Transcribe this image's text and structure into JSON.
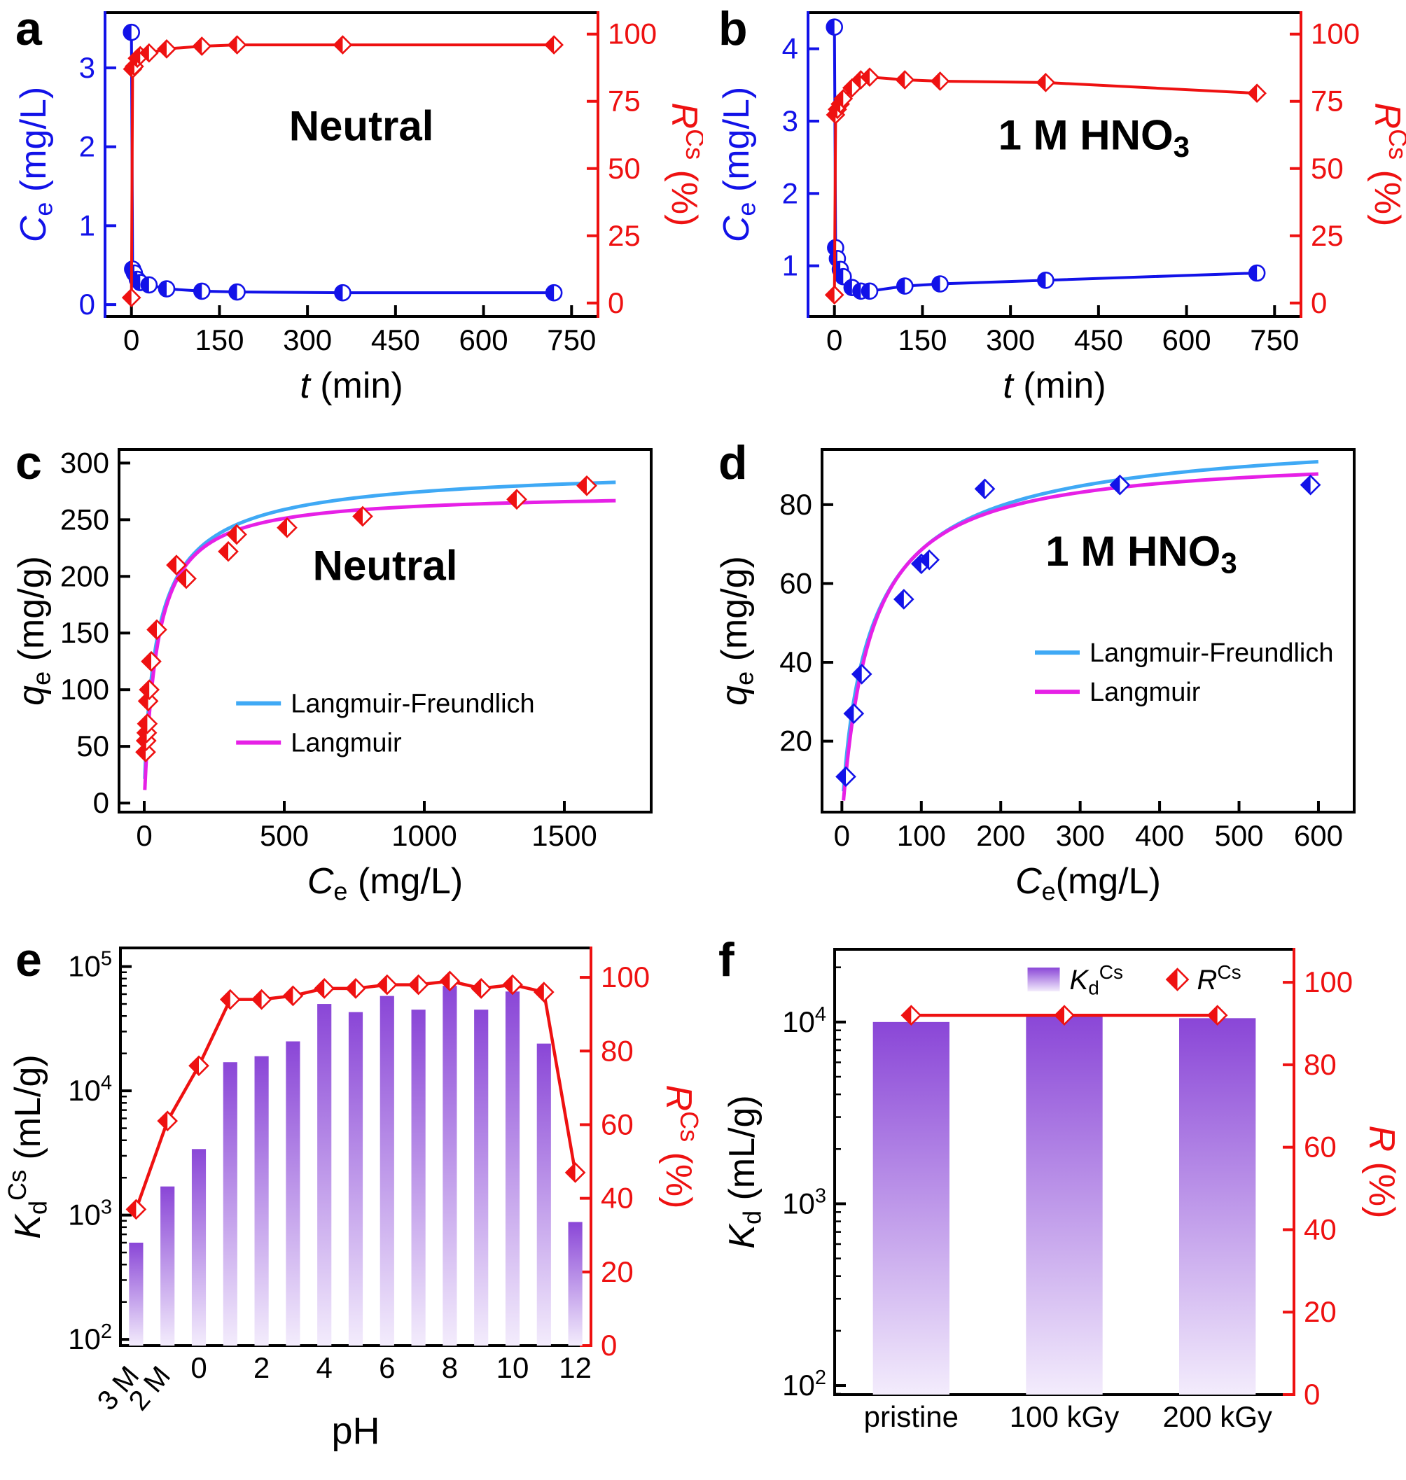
{
  "background": "#ffffff",
  "colors": {
    "blue": "#1212e8",
    "red": "#ee1111",
    "cyan": "#3fa9f5",
    "magenta": "#e620e6",
    "bar_bottom": "#f3ecfc",
    "bar_top": "#8a46d7"
  },
  "chart_data": [
    {
      "panel_label": "a",
      "type": "kinetics",
      "annotation": {
        "text": "Neutral",
        "fx": 0.52,
        "fy": 0.42
      },
      "x_axis": {
        "label": "*t* (min)",
        "min": -45,
        "max": 795,
        "ticks": [
          0,
          150,
          300,
          450,
          600,
          750
        ]
      },
      "y_left": {
        "label": "*C*_{e} (mg/L)",
        "color": "#1212e8",
        "min": -0.15,
        "max": 3.7,
        "ticks": [
          0,
          1,
          2,
          3
        ]
      },
      "y_right": {
        "label": "*R*^{Cs} (%)",
        "color": "#ee1111",
        "min": -5,
        "max": 108,
        "ticks": [
          0,
          25,
          50,
          75,
          100
        ]
      },
      "series": [
        {
          "name": "Ce",
          "axis": "left",
          "color": "#1212e8",
          "marker": "half_circle",
          "x": [
            0,
            2,
            5,
            10,
            15,
            30,
            60,
            120,
            180,
            360,
            720
          ],
          "y": [
            3.45,
            0.45,
            0.4,
            0.32,
            0.28,
            0.25,
            0.2,
            0.17,
            0.16,
            0.15,
            0.15
          ]
        },
        {
          "name": "R Cs",
          "axis": "right",
          "color": "#ee1111",
          "marker": "half_diamond",
          "x": [
            0,
            2,
            5,
            10,
            15,
            30,
            60,
            120,
            180,
            360,
            720
          ],
          "y": [
            2,
            87,
            88,
            91,
            92,
            93,
            94.5,
            95.5,
            96,
            96,
            96
          ]
        }
      ]
    },
    {
      "panel_label": "b",
      "type": "kinetics",
      "annotation": {
        "text": "1 M HNO_{3}",
        "fx": 0.58,
        "fy": 0.45
      },
      "x_axis": {
        "label": "*t* (min)",
        "min": -45,
        "max": 795,
        "ticks": [
          0,
          150,
          300,
          450,
          600,
          750
        ]
      },
      "y_left": {
        "label": "*C*_{e} (mg/L)",
        "color": "#1212e8",
        "min": 0.3,
        "max": 4.5,
        "ticks": [
          1,
          2,
          3,
          4
        ]
      },
      "y_right": {
        "label": "*R*^{Cs} (%)",
        "color": "#ee1111",
        "min": -5,
        "max": 108,
        "ticks": [
          0,
          25,
          50,
          75,
          100
        ]
      },
      "series": [
        {
          "name": "Ce",
          "axis": "left",
          "color": "#1212e8",
          "marker": "half_circle",
          "x": [
            0,
            2,
            5,
            10,
            15,
            30,
            45,
            60,
            120,
            180,
            360,
            720
          ],
          "y": [
            4.3,
            1.25,
            1.1,
            0.95,
            0.85,
            0.7,
            0.65,
            0.65,
            0.72,
            0.75,
            0.8,
            0.9
          ]
        },
        {
          "name": "R Cs",
          "axis": "right",
          "color": "#ee1111",
          "marker": "half_diamond",
          "x": [
            0,
            2,
            5,
            10,
            15,
            30,
            45,
            60,
            120,
            180,
            360,
            720
          ],
          "y": [
            3,
            70,
            72,
            74,
            76,
            80,
            83,
            84,
            83,
            82.5,
            82,
            78
          ]
        }
      ]
    },
    {
      "panel_label": "c",
      "type": "isotherm",
      "annotation": {
        "text": "Neutral",
        "fx": 0.5,
        "fy": 0.36
      },
      "x_axis": {
        "label": "*C*_{e} (mg/L)",
        "min": -90,
        "max": 1810,
        "ticks": [
          0,
          500,
          1000,
          1500
        ]
      },
      "y_axis": {
        "label": "*q*_{e} (mg/g)",
        "min": -8,
        "max": 312,
        "ticks": [
          0,
          50,
          100,
          150,
          200,
          250,
          300
        ]
      },
      "points": {
        "marker": "half_diamond",
        "color": "#ee1111",
        "x": [
          5,
          7,
          9,
          11,
          14,
          18,
          25,
          45,
          115,
          150,
          300,
          330,
          510,
          780,
          1330,
          1580
        ],
        "y": [
          45,
          55,
          62,
          70,
          90,
          100,
          125,
          153,
          210,
          198,
          222,
          237,
          243,
          253,
          268,
          280
        ]
      },
      "curves": [
        {
          "name": "Langmuir-Freundlich",
          "color": "#3fa9f5",
          "model": "langmuir_freundlich",
          "qm": 300,
          "k": 0.02,
          "n": 0.8
        },
        {
          "name": "Langmuir",
          "color": "#e620e6",
          "model": "langmuir",
          "qm": 274,
          "k": 0.022
        }
      ],
      "legend": {
        "fx": 0.22,
        "fy": 0.7
      }
    },
    {
      "panel_label": "d",
      "type": "isotherm",
      "annotation": {
        "text": "1 M HNO_{3}",
        "fx": 0.6,
        "fy": 0.32
      },
      "x_axis": {
        "label": "*C*_{e}(mg/L)",
        "min": -25,
        "max": 645,
        "ticks": [
          0,
          100,
          200,
          300,
          400,
          500,
          600
        ]
      },
      "y_axis": {
        "label": "*q*_{e} (mg/g)",
        "min": 2,
        "max": 94,
        "ticks": [
          20,
          40,
          60,
          80
        ]
      },
      "points": {
        "marker": "half_diamond",
        "color": "#1212e8",
        "x": [
          5,
          15,
          25,
          78,
          100,
          110,
          180,
          350,
          590
        ],
        "y": [
          11,
          27,
          37,
          56,
          65,
          66,
          84,
          85,
          85
        ]
      },
      "curves": [
        {
          "name": "Langmuir-Freundlich",
          "color": "#3fa9f5",
          "model": "langmuir_freundlich",
          "qm": 100,
          "k": 0.025,
          "n": 0.85
        },
        {
          "name": "Langmuir",
          "color": "#e620e6",
          "model": "langmuir",
          "qm": 93,
          "k": 0.028
        }
      ],
      "legend": {
        "fx": 0.4,
        "fy": 0.56
      }
    },
    {
      "panel_label": "e",
      "type": "bars",
      "x_axis": {
        "label": "pH",
        "categories": [
          "3 M",
          "2 M",
          "0",
          "1",
          "2",
          "3",
          "4",
          "5",
          "6",
          "7",
          "8",
          "9",
          "10",
          "11",
          "12"
        ],
        "labeled": [
          {
            "index": 0,
            "text": "3 M",
            "rotate": true
          },
          {
            "index": 1,
            "text": "2 M",
            "rotate": true
          },
          {
            "index": 2,
            "text": "0"
          },
          {
            "index": 4,
            "text": "2"
          },
          {
            "index": 6,
            "text": "4"
          },
          {
            "index": 8,
            "text": "6"
          },
          {
            "index": 10,
            "text": "8"
          },
          {
            "index": 12,
            "text": "10"
          },
          {
            "index": 14,
            "text": "12"
          }
        ]
      },
      "y_left": {
        "label": "*K*_{d}^{Cs} (mL/g)",
        "color": "#000000",
        "log_min_exp": 1.95,
        "log_max_exp": 5.15,
        "tick_exponents": [
          2,
          3,
          4,
          5
        ]
      },
      "y_right": {
        "label": "*R*^{Cs} (%)",
        "color": "#ee1111",
        "min": 0,
        "max": 108,
        "ticks": [
          0,
          20,
          40,
          60,
          80,
          100
        ]
      },
      "bars": {
        "color_bottom": "#f3ecfc",
        "color_top": "#8a46d7",
        "values": [
          600,
          1700,
          3400,
          17000,
          19000,
          25000,
          50000,
          43000,
          58000,
          45000,
          70000,
          45000,
          63000,
          24000,
          880
        ]
      },
      "line": {
        "color": "#ee1111",
        "marker": "half_diamond",
        "values": [
          37,
          61,
          76,
          94,
          94,
          95,
          97,
          97,
          98,
          98,
          99,
          97,
          98,
          96,
          47
        ]
      }
    },
    {
      "panel_label": "f",
      "type": "bars",
      "x_axis": {
        "label": "",
        "categories": [
          "pristine",
          "100 kGy",
          "200 kGy"
        ],
        "labeled": [
          {
            "index": 0,
            "text": "pristine"
          },
          {
            "index": 1,
            "text": "100 kGy"
          },
          {
            "index": 2,
            "text": "200 kGy"
          }
        ]
      },
      "y_left": {
        "label": "*K*_{d} (mL/g)",
        "color": "#000000",
        "log_min_exp": 1.95,
        "log_max_exp": 4.4,
        "tick_exponents": [
          2,
          3,
          4
        ]
      },
      "y_right": {
        "label": "*R* (%)",
        "color": "#ee1111",
        "min": 0,
        "max": 108,
        "ticks": [
          0,
          20,
          40,
          60,
          80,
          100
        ]
      },
      "bars": {
        "color_bottom": "#f3ecfc",
        "color_top": "#8a46d7",
        "values": [
          10000,
          11000,
          10500
        ]
      },
      "line": {
        "color": "#ee1111",
        "marker": "half_diamond",
        "values": [
          92,
          92,
          92
        ]
      },
      "legend": {
        "fx": 0.42,
        "fy": 0.03,
        "entries": [
          {
            "label": "*K*_{d}^{Cs}",
            "swatch": "bar"
          },
          {
            "label": "*R*^{Cs}",
            "swatch": "diamond"
          }
        ]
      }
    }
  ]
}
